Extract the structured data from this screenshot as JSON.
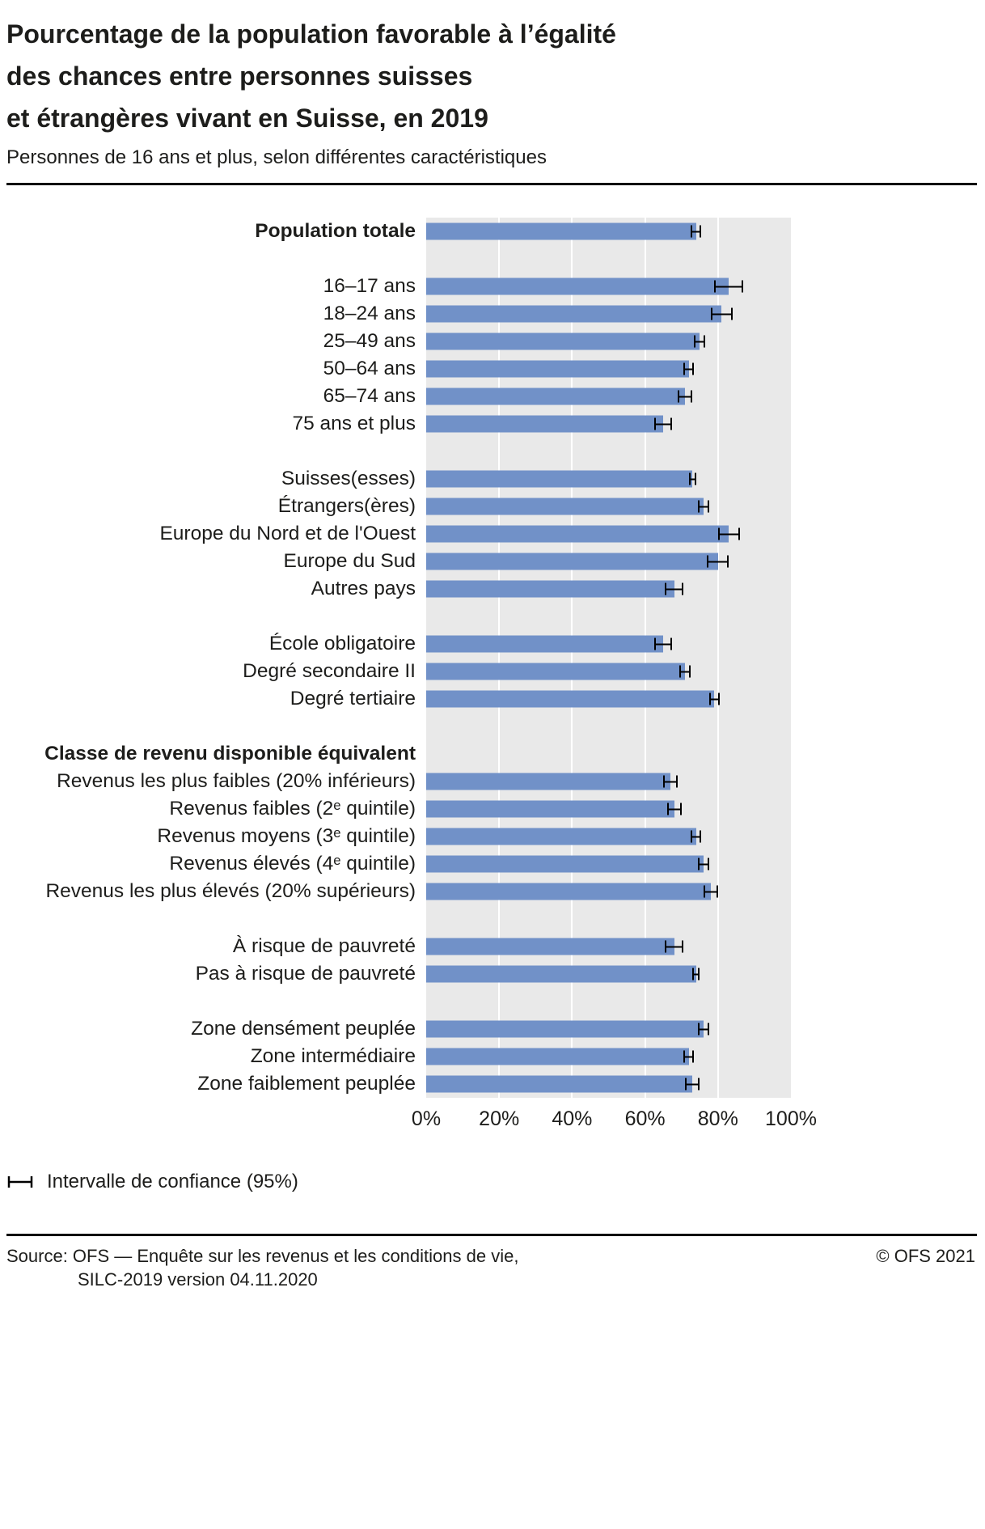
{
  "title_lines": [
    "Pourcentage de la population favorable à l’égalité",
    "des chances entre personnes suisses",
    "et étrangères vivant en Suisse, en 2019"
  ],
  "subtitle": "Personnes de 16 ans et plus, selon différentes caractéristiques",
  "legend_label": "Intervalle de confiance (95%)",
  "footer": {
    "source_line1": "Source: OFS — Enquête sur les revenus et les conditions de vie,",
    "source_line2": "SILC-2019 version 04.11.2020",
    "copyright": "© OFS 2021"
  },
  "colors": {
    "bar": "#7191c8",
    "plot_background": "#e9e9e9",
    "gridline": "#ffffff",
    "error_bar": "#000000"
  },
  "chart_data": {
    "type": "bar",
    "orientation": "horizontal",
    "title": "Pourcentage de la population favorable à l’égalité des chances entre personnes suisses et étrangères vivant en Suisse, en 2019",
    "subtitle": "Personnes de 16 ans et plus, selon différentes caractéristiques",
    "unit": "%",
    "xlim": [
      0,
      100
    ],
    "x_ticks": [
      "0%",
      "20%",
      "40%",
      "60%",
      "80%",
      "100%"
    ],
    "grid": true,
    "error_bars": "Intervalle de confiance (95%)",
    "groups": [
      {
        "rows": [
          {
            "label": "Population totale",
            "value": 74,
            "ci": 1.5,
            "bold": true
          }
        ]
      },
      {
        "rows": [
          {
            "label": "16–17 ans",
            "value": 83,
            "ci": 4
          },
          {
            "label": "18–24 ans",
            "value": 81,
            "ci": 3
          },
          {
            "label": "25–49 ans",
            "value": 75,
            "ci": 1.5
          },
          {
            "label": "50–64 ans",
            "value": 72,
            "ci": 1.5
          },
          {
            "label": "65–74 ans",
            "value": 71,
            "ci": 2
          },
          {
            "label": "75 ans et plus",
            "value": 65,
            "ci": 2.5
          }
        ]
      },
      {
        "rows": [
          {
            "label": "Suisses(esses)",
            "value": 73,
            "ci": 1
          },
          {
            "label": "Étrangers(ères)",
            "value": 76,
            "ci": 1.5
          },
          {
            "label": "Europe du Nord et de l'Ouest",
            "value": 83,
            "ci": 3
          },
          {
            "label": "Europe du Sud",
            "value": 80,
            "ci": 3
          },
          {
            "label": "Autres pays",
            "value": 68,
            "ci": 2.5
          }
        ]
      },
      {
        "rows": [
          {
            "label": "École obligatoire",
            "value": 65,
            "ci": 2.5
          },
          {
            "label": "Degré secondaire II",
            "value": 71,
            "ci": 1.5
          },
          {
            "label": "Degré tertiaire",
            "value": 79,
            "ci": 1.5
          }
        ]
      },
      {
        "header": "Classe de revenu disponible équivalent",
        "rows": [
          {
            "label": "Revenus les plus faibles (20% inférieurs)",
            "value": 67,
            "ci": 2
          },
          {
            "label": "Revenus faibles (2ᵉ quintile)",
            "value": 68,
            "ci": 2
          },
          {
            "label": "Revenus moyens (3ᵉ quintile)",
            "value": 74,
            "ci": 1.5
          },
          {
            "label": "Revenus élevés (4ᵉ quintile)",
            "value": 76,
            "ci": 1.5
          },
          {
            "label": "Revenus les plus élevés (20% supérieurs)",
            "value": 78,
            "ci": 2
          }
        ]
      },
      {
        "rows": [
          {
            "label": "À risque de pauvreté",
            "value": 68,
            "ci": 2.5
          },
          {
            "label": "Pas à risque de pauvreté",
            "value": 74,
            "ci": 1
          }
        ]
      },
      {
        "rows": [
          {
            "label": "Zone densément peuplée",
            "value": 76,
            "ci": 1.5
          },
          {
            "label": "Zone intermédiaire",
            "value": 72,
            "ci": 1.5
          },
          {
            "label": "Zone faiblement peuplée",
            "value": 73,
            "ci": 2
          }
        ]
      }
    ]
  }
}
